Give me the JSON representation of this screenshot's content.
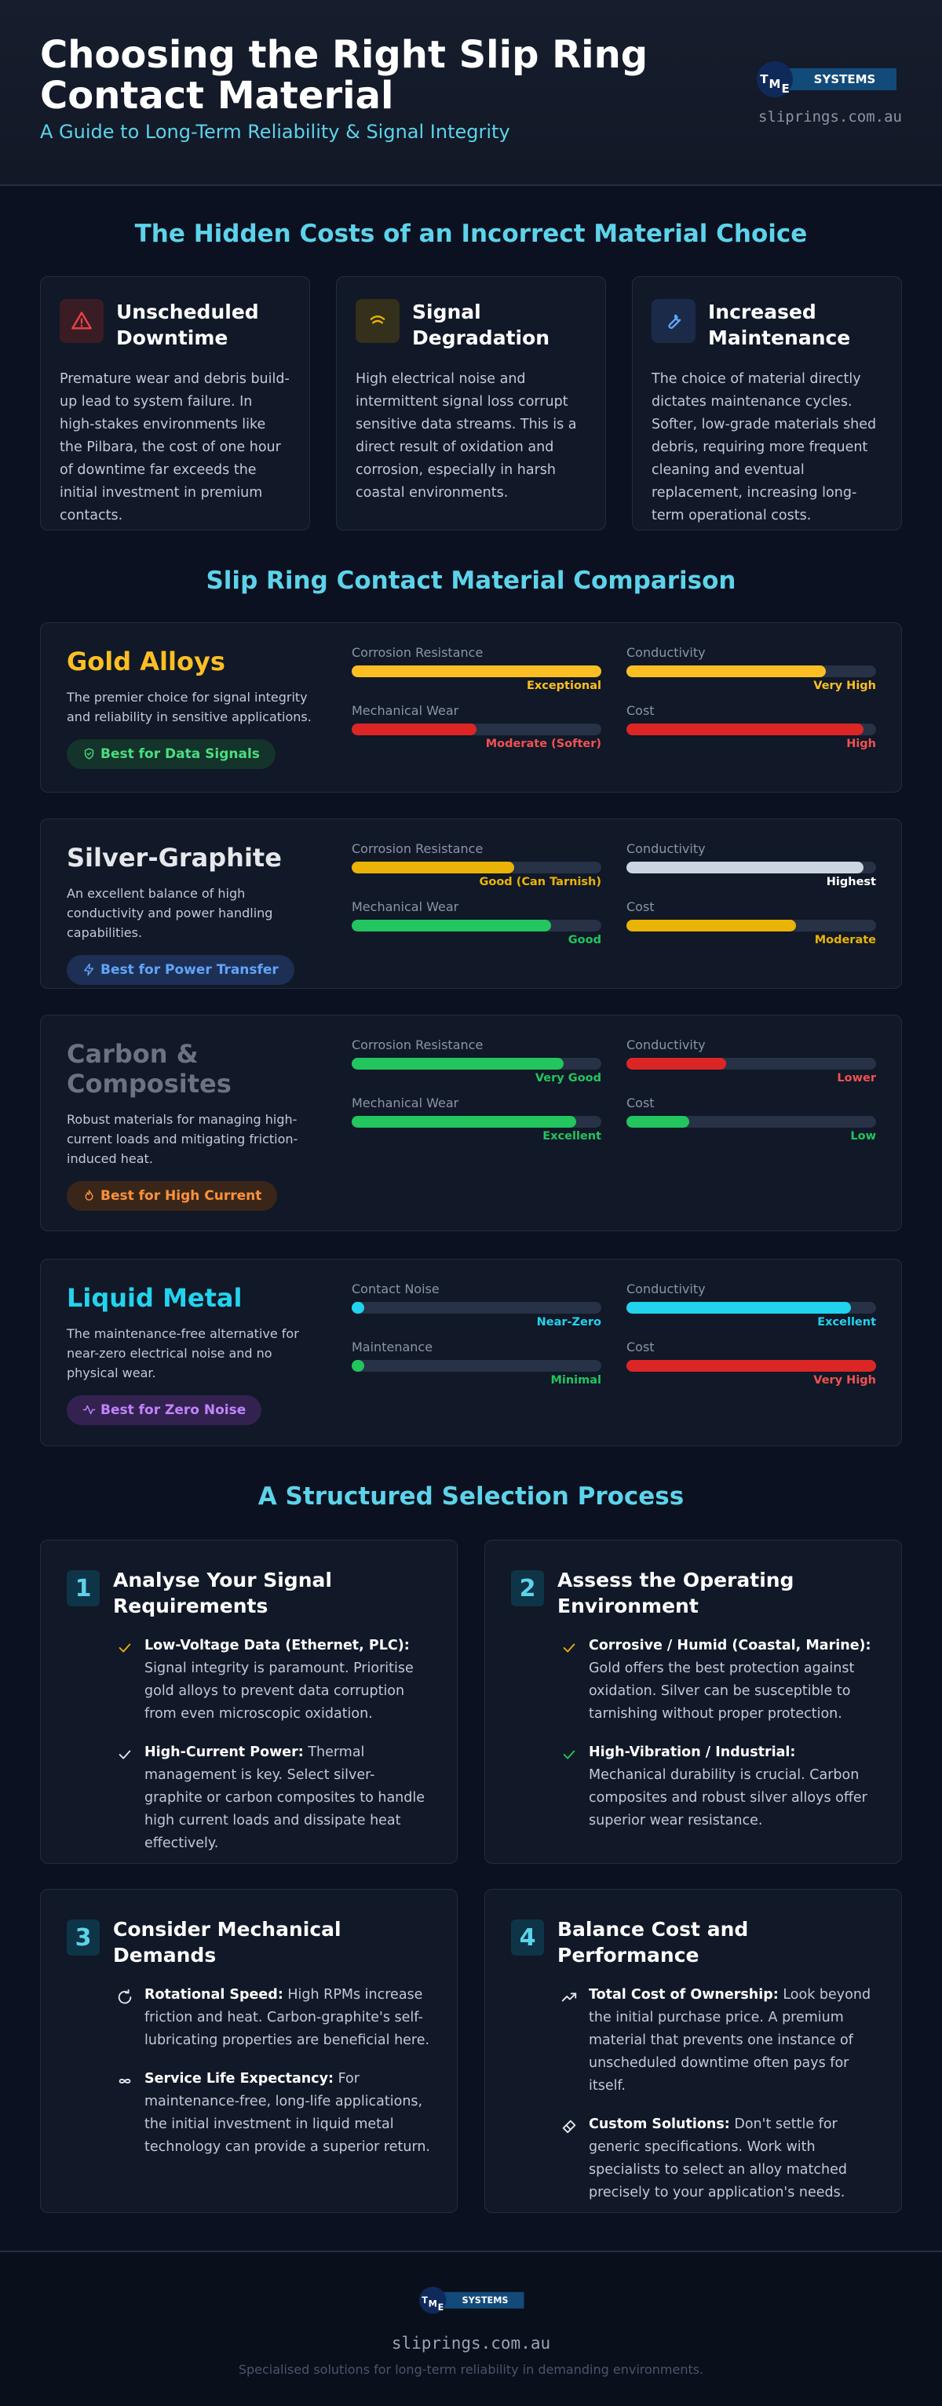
{
  "header": {
    "title": "Choosing the Right Slip Ring Contact Material",
    "subtitle": "A Guide to Long-Term Reliability & Signal Integrity",
    "logo": {
      "letters": [
        "T",
        "M",
        "E"
      ],
      "text": "SYSTEMS"
    },
    "site": "sliprings.com.au"
  },
  "hidden_costs": {
    "title": "The Hidden Costs of an Incorrect Material Choice",
    "cards": [
      {
        "title": "Unscheduled Downtime",
        "text": "Premature wear and debris build-up lead to system failure. In high-stakes environments like the Pilbara, the cost of one hour of downtime far exceeds the initial investment in premium contacts."
      },
      {
        "title": "Signal Degradation",
        "text": "High electrical noise and intermittent signal loss corrupt sensitive data streams. This is a direct result of oxidation and corrosion, especially in harsh coastal environments."
      },
      {
        "title": "Increased Maintenance",
        "text": "The choice of material directly dictates maintenance cycles. Softer, low-grade materials shed debris, requiring more frequent cleaning and eventual replacement, increasing long-term operational costs."
      }
    ]
  },
  "comparison": {
    "title": "Slip Ring Contact Material Comparison",
    "materials": [
      {
        "name": "Gold Alloys",
        "color": "#fbbf24",
        "description": "The premier choice for signal integrity and reliability in sensitive applications.",
        "badge": "Best for Data Signals",
        "metrics": [
          {
            "label": "Corrosion Resistance",
            "fill": 100,
            "rating": "Exceptional",
            "color": "#fbbf24"
          },
          {
            "label": "Conductivity",
            "fill": 80,
            "rating": "Very High",
            "color": "#fbbf24"
          },
          {
            "label": "Mechanical Wear",
            "fill": 50,
            "rating": "Moderate (Softer)",
            "color": "#dc2626"
          },
          {
            "label": "Cost",
            "fill": 95,
            "rating": "High",
            "color": "#dc2626"
          }
        ]
      },
      {
        "name": "Silver-Graphite",
        "color": "#e5e7eb",
        "description": "An excellent balance of high conductivity and power handling capabilities.",
        "badge": "Best for Power Transfer",
        "metrics": [
          {
            "label": "Corrosion Resistance",
            "fill": 65,
            "rating": "Good (Can Tarnish)",
            "color": "#eab308"
          },
          {
            "label": "Conductivity",
            "fill": 95,
            "rating": "Highest",
            "color": "#cbd5e1"
          },
          {
            "label": "Mechanical Wear",
            "fill": 80,
            "rating": "Good",
            "color": "#22c55e"
          },
          {
            "label": "Cost",
            "fill": 68,
            "rating": "Moderate",
            "color": "#eab308"
          }
        ]
      },
      {
        "name": "Carbon & Composites",
        "color": "#6b7280",
        "description": "Robust materials for managing high-current loads and mitigating friction-induced heat.",
        "badge": "Best for High Current",
        "metrics": [
          {
            "label": "Corrosion Resistance",
            "fill": 85,
            "rating": "Very Good",
            "color": "#22c55e"
          },
          {
            "label": "Conductivity",
            "fill": 40,
            "rating": "Lower",
            "color": "#dc2626"
          },
          {
            "label": "Mechanical Wear",
            "fill": 90,
            "rating": "Excellent",
            "color": "#22c55e"
          },
          {
            "label": "Cost",
            "fill": 25,
            "rating": "Low",
            "color": "#22c55e"
          }
        ]
      },
      {
        "name": "Liquid Metal",
        "color": "#22d3ee",
        "description": "The maintenance-free alternative for near-zero electrical noise and no physical wear.",
        "badge": "Best for Zero Noise",
        "metrics": [
          {
            "label": "Contact Noise",
            "fill": 5,
            "rating": "Near-Zero",
            "color": "#22d3ee"
          },
          {
            "label": "Conductivity",
            "fill": 90,
            "rating": "Excellent",
            "color": "#22d3ee"
          },
          {
            "label": "Maintenance",
            "fill": 5,
            "rating": "Minimal",
            "color": "#22c55e"
          },
          {
            "label": "Cost",
            "fill": 100,
            "rating": "Very High",
            "color": "#dc2626"
          }
        ]
      }
    ]
  },
  "process": {
    "title": "A Structured Selection Process",
    "steps": [
      {
        "number": 1,
        "title": "Analyse Your Signal Requirements",
        "items": [
          {
            "lead": "Low-Voltage Data (Ethernet, PLC):",
            "text": "Signal integrity is paramount. Prioritise gold alloys to prevent data corruption from even microscopic oxidation."
          },
          {
            "lead": "High-Current Power:",
            "text": "Thermal management is key. Select silver-graphite or carbon composites to handle high current loads and dissipate heat effectively."
          }
        ]
      },
      {
        "number": 2,
        "title": "Assess the Operating Environment",
        "items": [
          {
            "lead": "Corrosive / Humid (Coastal, Marine):",
            "text": "Gold offers the best protection against oxidation. Silver can be susceptible to tarnishing without proper protection."
          },
          {
            "lead": "High-Vibration / Industrial:",
            "text": "Mechanical durability is crucial. Carbon composites and robust silver alloys offer superior wear resistance."
          }
        ]
      },
      {
        "number": 3,
        "title": "Consider Mechanical Demands",
        "items": [
          {
            "lead": "Rotational Speed:",
            "text": "High RPMs increase friction and heat. Carbon-graphite's self-lubricating properties are beneficial here."
          },
          {
            "lead": "Service Life Expectancy:",
            "text": "For maintenance-free, long-life applications, the initial investment in liquid metal technology can provide a superior return."
          }
        ]
      },
      {
        "number": 4,
        "title": "Balance Cost and Performance",
        "items": [
          {
            "lead": "Total Cost of Ownership:",
            "text": "Look beyond the initial purchase price. A premium material that prevents one instance of unscheduled downtime often pays for itself."
          },
          {
            "lead": "Custom Solutions:",
            "text": "Don't settle for generic specifications. Work with specialists to select an alloy matched precisely to your application's needs."
          }
        ]
      }
    ]
  },
  "footer": {
    "site": "sliprings.com.au",
    "tagline": "Specialised solutions for long-term reliability in demanding environments."
  }
}
